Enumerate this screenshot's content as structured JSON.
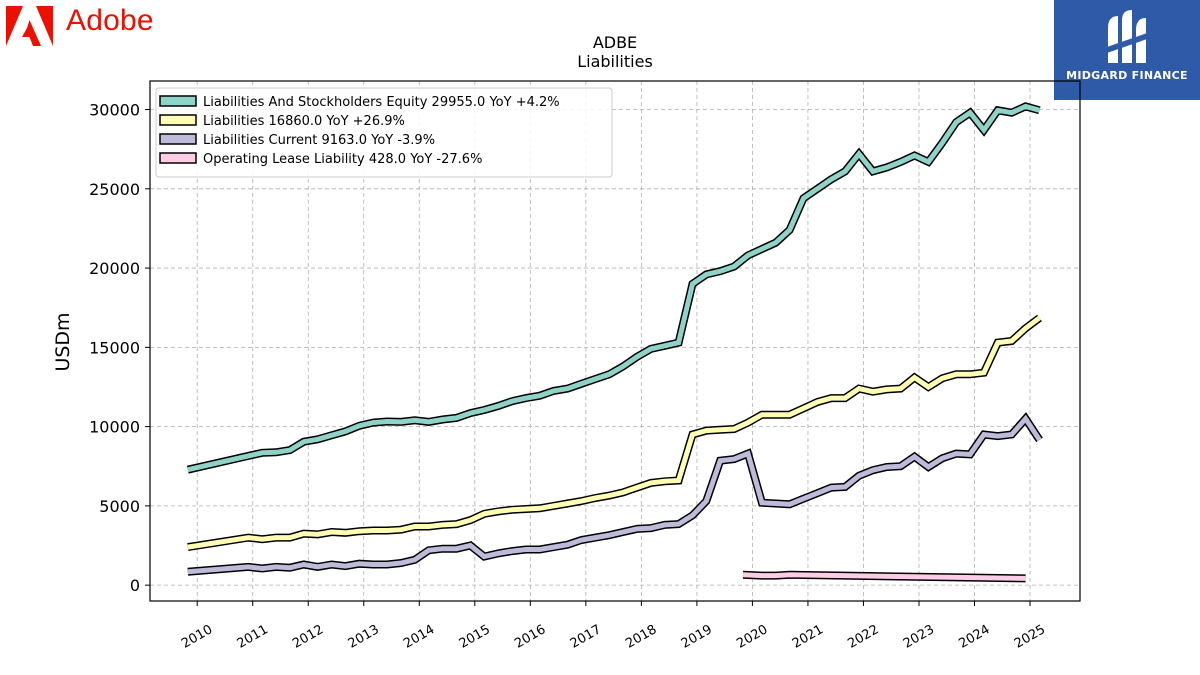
{
  "header": {
    "brand_name": "Adobe",
    "brand_color": "#eb1000",
    "brand_icon": "adobe-logo-icon",
    "partner_name": "MIDGARD FINANCE",
    "partner_color": "#2f5aa8",
    "partner_icon": "midgard-logo-icon"
  },
  "chart_data": {
    "type": "line",
    "title": "ADBE",
    "subtitle": "Liabilities",
    "ylabel": "USDm",
    "xlabel": "",
    "xlim": [
      2009.15,
      2025.9
    ],
    "ylim": [
      -1000,
      31800
    ],
    "yticks": [
      0,
      5000,
      10000,
      15000,
      20000,
      25000,
      30000
    ],
    "xticks": [
      2010,
      2011,
      2012,
      2013,
      2014,
      2015,
      2016,
      2017,
      2018,
      2019,
      2020,
      2021,
      2022,
      2023,
      2024,
      2025
    ],
    "grid": true,
    "legend_position": "top-left",
    "series": [
      {
        "name": "Liabilities And Stockholders Equity",
        "legend": "Liabilities And Stockholders Equity  29955.0 YoY +4.2%",
        "color": "#8dd3c7",
        "x": [
          2009.83,
          2010.92,
          2011.17,
          2011.42,
          2011.67,
          2011.92,
          2012.17,
          2012.42,
          2012.67,
          2012.92,
          2013.17,
          2013.42,
          2013.67,
          2013.92,
          2014.17,
          2014.42,
          2014.67,
          2014.92,
          2015.17,
          2015.42,
          2015.67,
          2015.92,
          2016.17,
          2016.42,
          2016.67,
          2016.92,
          2017.17,
          2017.42,
          2017.67,
          2017.92,
          2018.17,
          2018.42,
          2018.67,
          2018.92,
          2019.17,
          2019.42,
          2019.67,
          2019.92,
          2020.17,
          2020.42,
          2020.67,
          2020.92,
          2021.17,
          2021.42,
          2021.67,
          2021.92,
          2022.17,
          2022.42,
          2022.67,
          2022.92,
          2023.17,
          2023.42,
          2023.67,
          2023.92,
          2024.17,
          2024.42,
          2024.67,
          2024.92,
          2025.17
        ],
        "values": [
          7280,
          8150,
          8350,
          8380,
          8520,
          9050,
          9200,
          9450,
          9700,
          10050,
          10250,
          10320,
          10300,
          10400,
          10300,
          10450,
          10550,
          10850,
          11050,
          11300,
          11600,
          11800,
          11950,
          12250,
          12400,
          12700,
          13000,
          13300,
          13800,
          14400,
          14900,
          15100,
          15300,
          19000,
          19600,
          19800,
          20100,
          20800,
          21200,
          21600,
          22400,
          24400,
          25000,
          25600,
          26100,
          27200,
          26100,
          26350,
          26700,
          27100,
          26700,
          27900,
          29200,
          29800,
          28700,
          29950,
          29800,
          30200,
          29955
        ]
      },
      {
        "name": "Liabilities",
        "legend": "Liabilities  16860.0 YoY +26.9%",
        "color": "#ffffb3",
        "x": [
          2009.83,
          2010.92,
          2011.17,
          2011.42,
          2011.67,
          2011.92,
          2012.17,
          2012.42,
          2012.67,
          2012.92,
          2013.17,
          2013.42,
          2013.67,
          2013.92,
          2014.17,
          2014.42,
          2014.67,
          2014.92,
          2015.17,
          2015.42,
          2015.67,
          2015.92,
          2016.17,
          2016.42,
          2016.67,
          2016.92,
          2017.17,
          2017.42,
          2017.67,
          2017.92,
          2018.17,
          2018.42,
          2018.67,
          2018.92,
          2019.17,
          2019.42,
          2019.67,
          2019.92,
          2020.17,
          2020.42,
          2020.67,
          2020.92,
          2021.17,
          2021.42,
          2021.67,
          2021.92,
          2022.17,
          2022.42,
          2022.67,
          2022.92,
          2023.17,
          2023.42,
          2023.67,
          2023.92,
          2024.17,
          2024.42,
          2024.67,
          2024.92,
          2025.17
        ],
        "values": [
          2400,
          3000,
          2900,
          3000,
          3000,
          3250,
          3200,
          3350,
          3300,
          3400,
          3450,
          3450,
          3500,
          3700,
          3700,
          3800,
          3850,
          4100,
          4500,
          4650,
          4750,
          4800,
          4850,
          5000,
          5150,
          5300,
          5500,
          5650,
          5850,
          6150,
          6450,
          6550,
          6600,
          9500,
          9750,
          9800,
          9850,
          10250,
          10750,
          10750,
          10750,
          11150,
          11550,
          11800,
          11800,
          12400,
          12200,
          12350,
          12400,
          13100,
          12500,
          13050,
          13300,
          13300,
          13400,
          15300,
          15400,
          16200,
          16860
        ]
      },
      {
        "name": "Liabilities Current",
        "legend": "Liabilities Current  9163.0 YoY -3.9%",
        "color": "#bebada",
        "x": [
          2009.83,
          2010.92,
          2011.17,
          2011.42,
          2011.67,
          2011.92,
          2012.17,
          2012.42,
          2012.67,
          2012.92,
          2013.17,
          2013.42,
          2013.67,
          2013.92,
          2014.17,
          2014.42,
          2014.67,
          2014.92,
          2015.17,
          2015.42,
          2015.67,
          2015.92,
          2016.17,
          2016.42,
          2016.67,
          2016.92,
          2017.17,
          2017.42,
          2017.67,
          2017.92,
          2018.17,
          2018.42,
          2018.67,
          2018.92,
          2019.17,
          2019.42,
          2019.67,
          2019.92,
          2020.17,
          2020.42,
          2020.67,
          2020.92,
          2021.17,
          2021.42,
          2021.67,
          2021.92,
          2022.17,
          2022.42,
          2022.67,
          2022.92,
          2023.17,
          2023.42,
          2023.67,
          2023.92,
          2024.17,
          2024.42,
          2024.67,
          2024.92,
          2025.17
        ],
        "values": [
          850,
          1150,
          1050,
          1150,
          1100,
          1300,
          1150,
          1300,
          1200,
          1350,
          1300,
          1300,
          1400,
          1600,
          2200,
          2300,
          2300,
          2500,
          1800,
          2000,
          2150,
          2250,
          2250,
          2400,
          2550,
          2850,
          3000,
          3150,
          3350,
          3550,
          3600,
          3800,
          3850,
          4400,
          5300,
          7850,
          7950,
          8300,
          5200,
          5150,
          5100,
          5450,
          5800,
          6150,
          6200,
          6900,
          7250,
          7450,
          7500,
          8100,
          7450,
          8000,
          8300,
          8250,
          9500,
          9400,
          9500,
          10500,
          9163
        ]
      },
      {
        "name": "Operating Lease Liability",
        "legend": "Operating Lease Liability  428.0 YoY -27.6%",
        "color": "#fccde5",
        "x": [
          2019.83,
          2020.17,
          2020.42,
          2020.67,
          2024.92
        ],
        "values": [
          650,
          600,
          600,
          650,
          428
        ]
      }
    ]
  }
}
